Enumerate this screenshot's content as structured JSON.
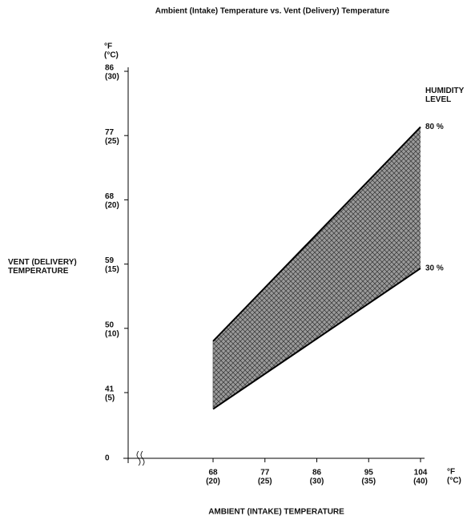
{
  "chart_data": {
    "type": "band",
    "title": "Ambient (Intake) Temperature vs. Vent (Delivery) Temperature",
    "x_label": "AMBIENT (INTAKE) TEMPERATURE",
    "y_label": "VENT (DELIVERY) TEMPERATURE",
    "legend_title": "HUMIDITY LEVEL",
    "x_unit": "°F",
    "x_unit_c": "(°C)",
    "y_unit": "°F",
    "y_unit_c": "(°C)",
    "xlim": [
      0,
      104
    ],
    "ylim": [
      0,
      86
    ],
    "axis_break": true,
    "xticks": [
      68,
      77,
      86,
      95,
      104
    ],
    "xticks_celsius": [
      "(20)",
      "(25)",
      "(30)",
      "(35)",
      "(40)"
    ],
    "yticks": [
      0,
      41,
      50,
      59,
      68,
      77,
      86
    ],
    "yticks_celsius": [
      null,
      "(5)",
      "(10)",
      "(15)",
      "(20)",
      "(25)",
      "(30)"
    ],
    "x": [
      68,
      104
    ],
    "series": [
      {
        "name": "80 %",
        "color": "#000000",
        "values": [
          48.2,
          78.2
        ]
      },
      {
        "name": "30 %",
        "color": "#000000",
        "values": [
          38.7,
          58.4
        ]
      }
    ],
    "fill_color": "#8a8a8a"
  }
}
